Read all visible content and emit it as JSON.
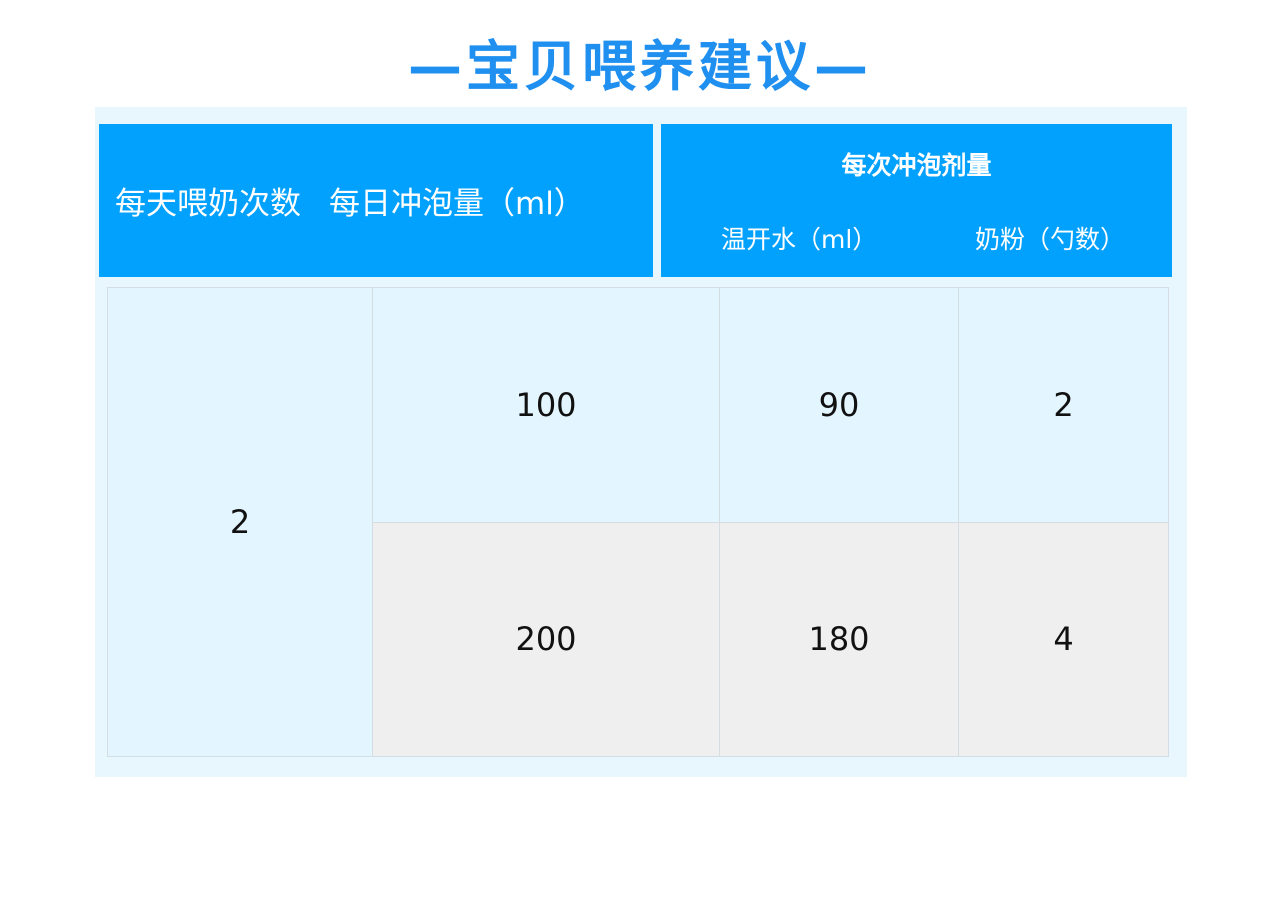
{
  "title": "—宝贝喂养建议—",
  "header": {
    "feedings_per_day": "每天喂奶次数",
    "daily_volume": "每日冲泡量（ml）",
    "per_feeding": "每次冲泡剂量",
    "water": "温开水（ml）",
    "powder": "奶粉（勺数）"
  },
  "colors": {
    "title": "#1f8ff0",
    "header_bg": "#03a1fe",
    "panel_bg": "#e8f6fd",
    "row_light": "#e3f5fe",
    "row_gray": "#efefef"
  },
  "rows": {
    "feedings": "2",
    "items": [
      {
        "volume": "100",
        "water": "90",
        "powder": "2"
      },
      {
        "volume": "200",
        "water": "180",
        "powder": "4"
      }
    ]
  }
}
